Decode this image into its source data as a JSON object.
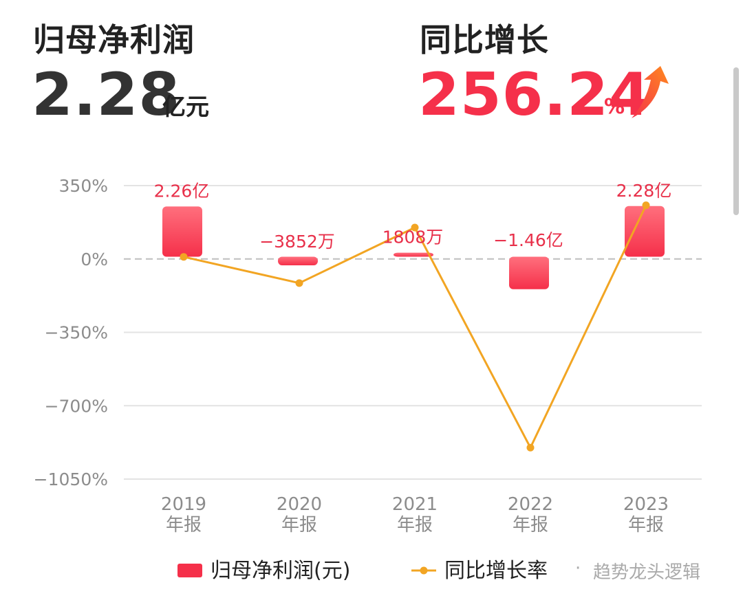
{
  "header": {
    "profit_title": "归母净利润",
    "profit_value": "2.28",
    "profit_unit": "亿元",
    "growth_title": "同比增长",
    "growth_value": "256.24",
    "growth_unit": "%",
    "trend_icon": "up-arrow-icon"
  },
  "watermark": {
    "dot": "·",
    "text": "趋势龙头逻辑"
  },
  "colors": {
    "bar": "#f5304a",
    "line": "#f2a523",
    "label": "#e8304a",
    "axis_text": "#8c8c8c",
    "grid": "#e3e3e3"
  },
  "chart_data": {
    "type": "bar",
    "categories": [
      "2019\n年报",
      "2020\n年报",
      "2021\n年报",
      "2022\n年报",
      "2023\n年报"
    ],
    "series": [
      {
        "name": "归母净利润(元)",
        "type": "bar",
        "axis": "left",
        "values": [
          226000000,
          -38520000,
          18080000,
          -146000000,
          228000000
        ],
        "labels": [
          "2.26亿",
          "−3852万",
          "1808万",
          "−1.46亿",
          "2.28亿"
        ]
      },
      {
        "name": "同比增长率",
        "type": "line",
        "axis": "right",
        "values": [
          10,
          -115,
          150,
          -900,
          256.24
        ]
      }
    ],
    "y_ticks": [
      "350%",
      "0%",
      "−350%",
      "−700%",
      "−1050%"
    ],
    "y_tick_values": [
      350,
      0,
      -350,
      -700,
      -1050
    ],
    "ylim_percent": [
      -1050,
      350
    ],
    "ylim_amount": [
      -1000000000,
      320000000
    ],
    "grid": true,
    "legend": "bottom"
  }
}
